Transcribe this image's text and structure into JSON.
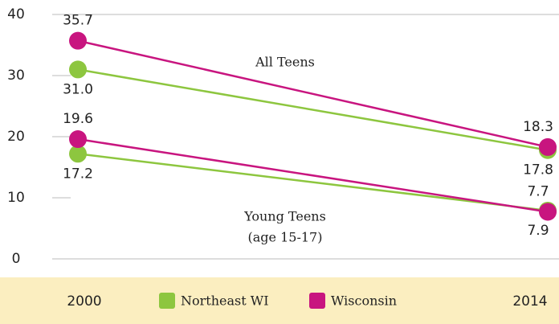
{
  "chart_data": {
    "type": "line",
    "x": [
      2000,
      2014
    ],
    "ylim": [
      0,
      40
    ],
    "yticks": [
      0,
      10,
      20,
      30,
      40
    ],
    "series": [
      {
        "name": "Northeast WI",
        "color": "#8dc63f",
        "label_side": "below",
        "lines": [
          {
            "values": [
              31.0,
              17.8
            ],
            "value_labels": [
              "31.0",
              "17.8"
            ]
          },
          {
            "values": [
              17.2,
              7.9
            ],
            "value_labels": [
              "17.2",
              "7.9"
            ]
          }
        ]
      },
      {
        "name": "Wisconsin",
        "color": "#c8157f",
        "label_side": "above",
        "lines": [
          {
            "values": [
              35.7,
              18.3
            ],
            "value_labels": [
              "35.7",
              "18.3"
            ]
          },
          {
            "values": [
              19.6,
              7.7
            ],
            "value_labels": [
              "19.6",
              "7.7"
            ]
          }
        ]
      }
    ],
    "annotations": [
      "All Teens",
      "Young Teens",
      "(age 15-17)"
    ]
  }
}
